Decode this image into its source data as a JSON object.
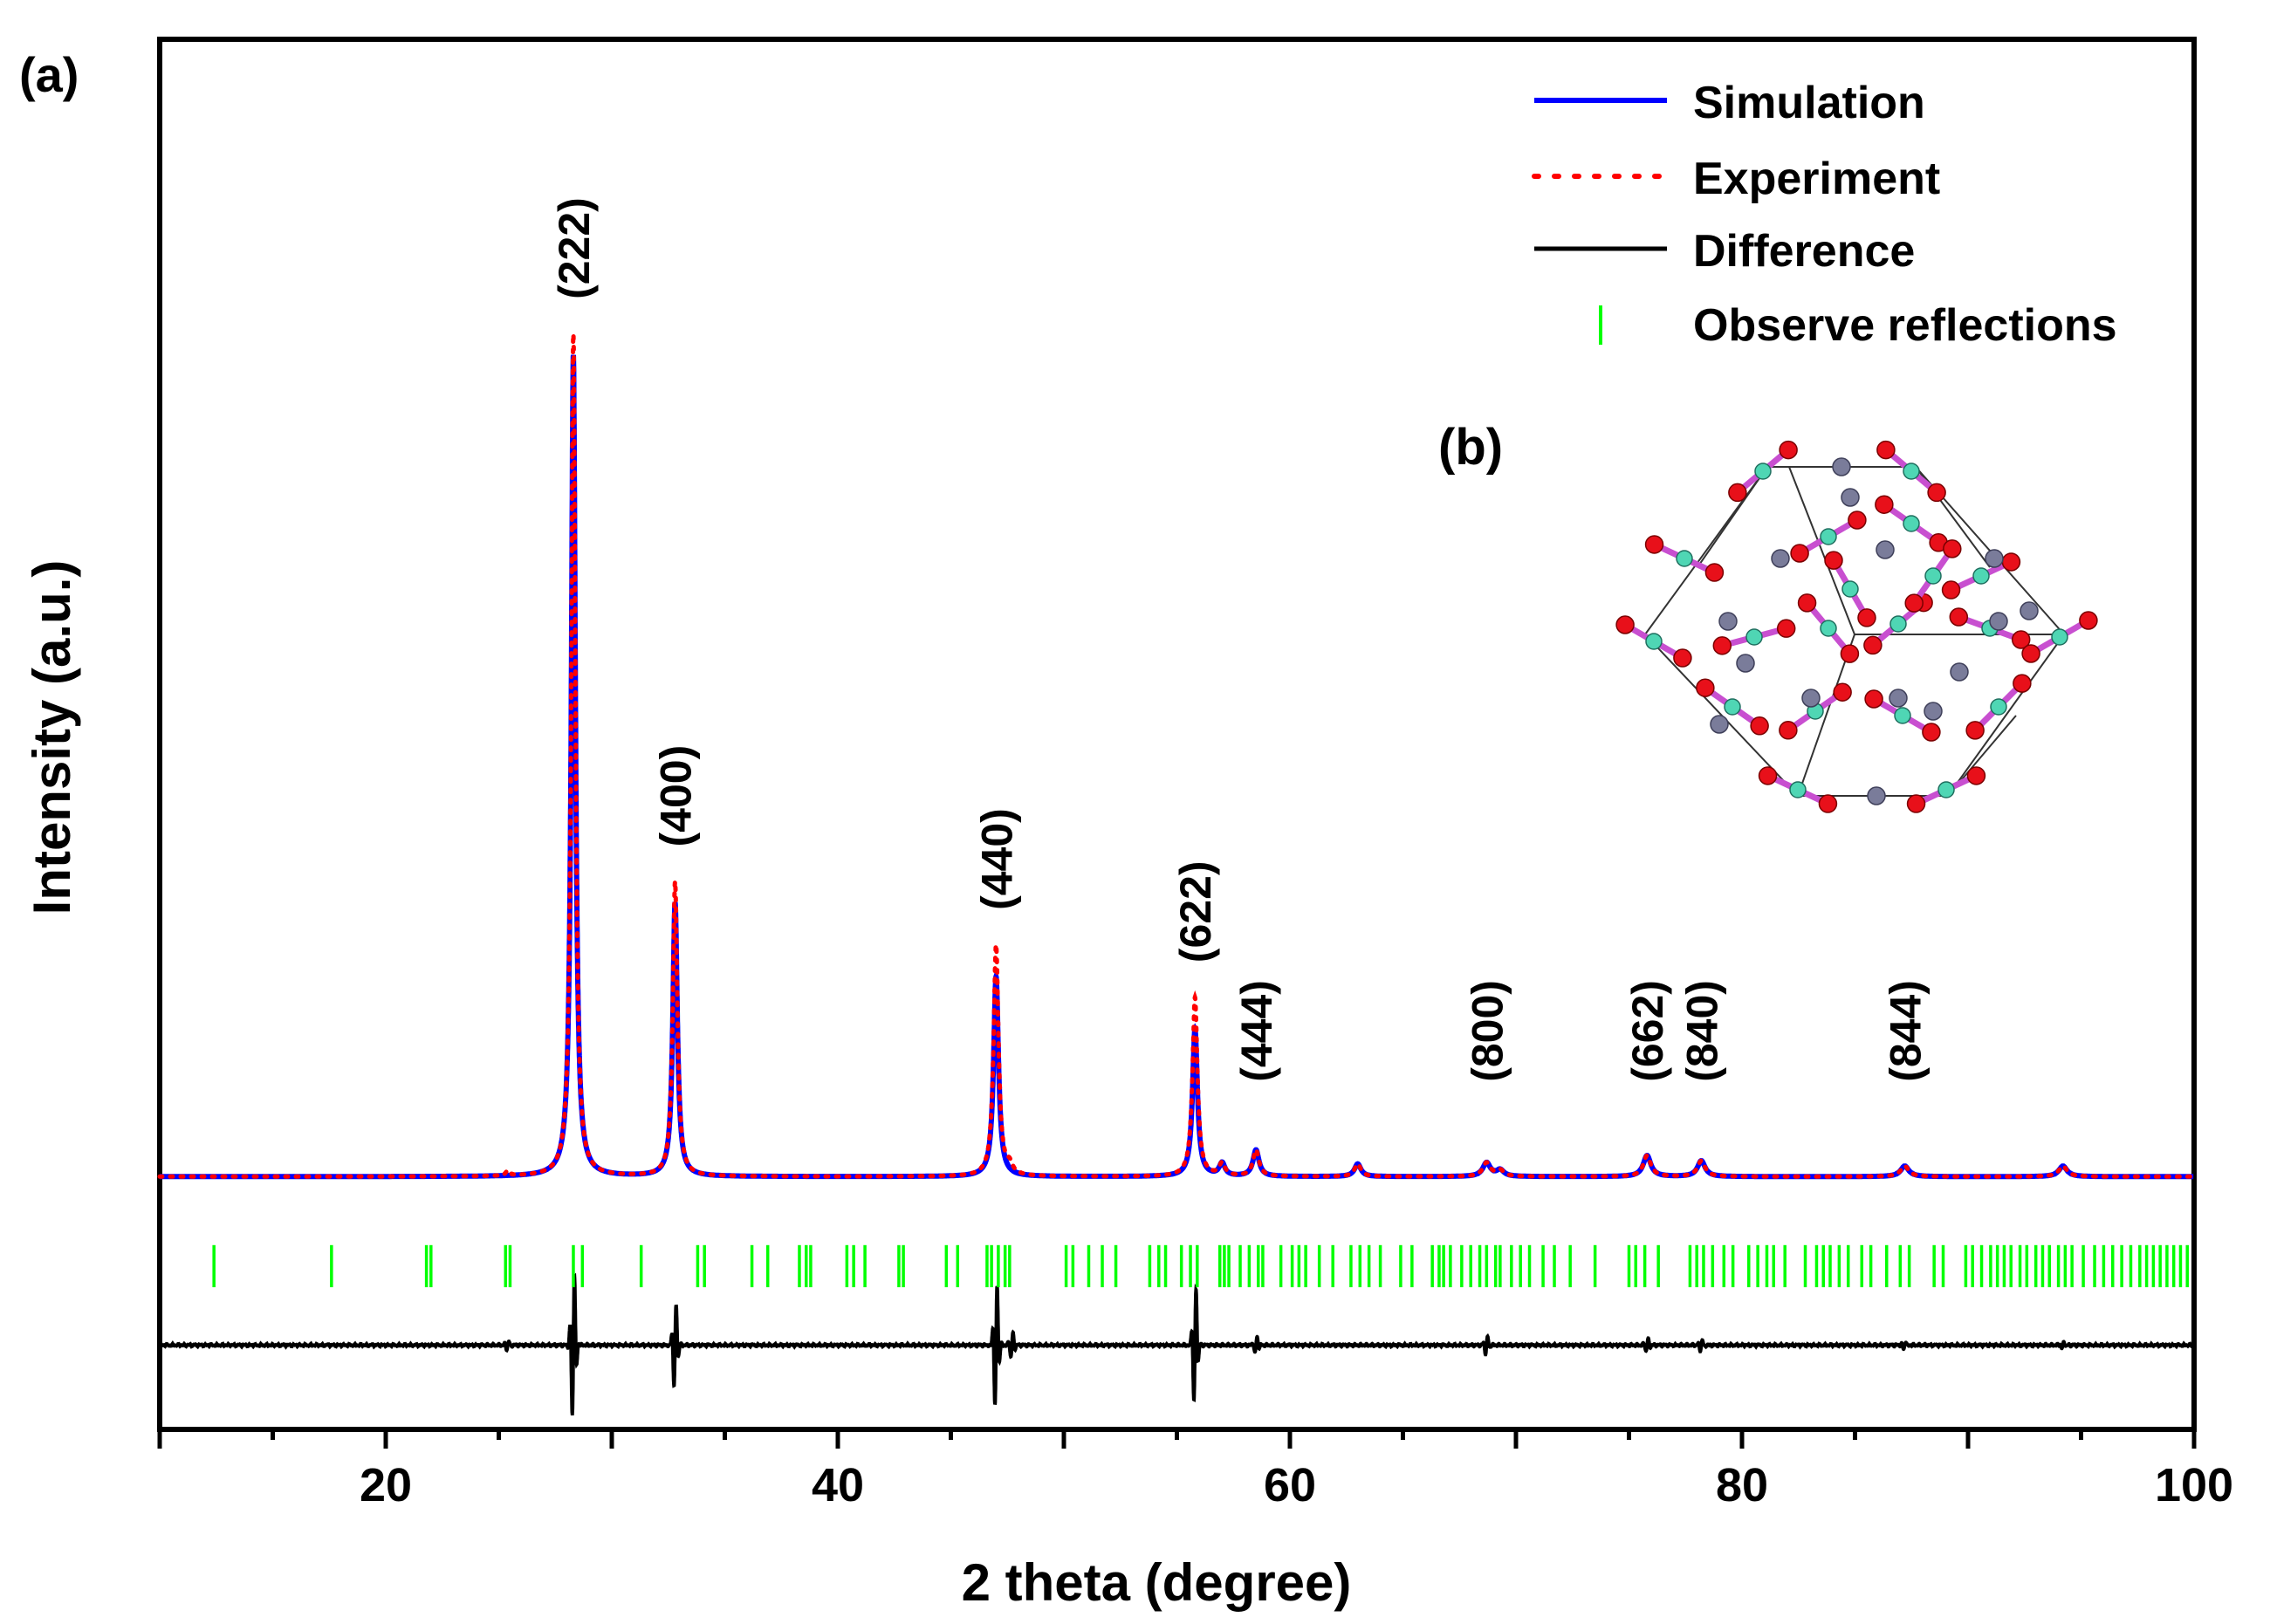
{
  "panel_label_a": "(a)",
  "panel_label_b": "(b)",
  "chart_data": {
    "type": "line",
    "title": "",
    "xlabel": "2 theta (degree)",
    "ylabel": "Intensity (a.u.)",
    "xlim": [
      10,
      100
    ],
    "ylim": [
      -0.22,
      1.1
    ],
    "x_ticks": [
      20,
      40,
      60,
      80,
      100
    ],
    "x_tick_labels": [
      "20",
      "40",
      "60",
      "80",
      "100"
    ],
    "grid": false,
    "legend_position": "top-right",
    "series": [
      {
        "name": "Simulation",
        "style": "solid",
        "color": "#0000ff"
      },
      {
        "name": "Experiment",
        "style": "dotted",
        "color": "#ff0000"
      },
      {
        "name": "Difference",
        "style": "solid",
        "color": "#000000"
      },
      {
        "name": "Observe reflections",
        "style": "ticks",
        "color": "#00ff00"
      }
    ],
    "baseline": 0.02,
    "difference_offset": -0.14,
    "peaks": [
      {
        "x": 28.3,
        "sim": 0.78,
        "exp": 0.8,
        "width": 0.11
      },
      {
        "x": 32.8,
        "sim": 0.26,
        "exp": 0.28,
        "width": 0.12
      },
      {
        "x": 47.0,
        "sim": 0.19,
        "exp": 0.22,
        "width": 0.13
      },
      {
        "x": 55.8,
        "sim": 0.14,
        "exp": 0.17,
        "width": 0.13
      },
      {
        "x": 57.0,
        "sim": 0.012,
        "exp": 0.012,
        "width": 0.15
      },
      {
        "x": 58.5,
        "sim": 0.025,
        "exp": 0.025,
        "width": 0.16
      },
      {
        "x": 63.0,
        "sim": 0.012,
        "exp": 0.012,
        "width": 0.17
      },
      {
        "x": 68.7,
        "sim": 0.013,
        "exp": 0.013,
        "width": 0.2
      },
      {
        "x": 69.3,
        "sim": 0.006,
        "exp": 0.006,
        "width": 0.2
      },
      {
        "x": 75.8,
        "sim": 0.02,
        "exp": 0.02,
        "width": 0.2
      },
      {
        "x": 78.2,
        "sim": 0.015,
        "exp": 0.015,
        "width": 0.2
      },
      {
        "x": 87.2,
        "sim": 0.01,
        "exp": 0.01,
        "width": 0.22
      },
      {
        "x": 94.2,
        "sim": 0.01,
        "exp": 0.01,
        "width": 0.22
      },
      {
        "x": 25.4,
        "sim": 0.0,
        "exp": 0.005,
        "width": 0.1
      },
      {
        "x": 47.6,
        "sim": 0.0,
        "exp": 0.008,
        "width": 0.15
      }
    ],
    "difference_spikes": [
      {
        "x": 28.3,
        "amp": 0.07
      },
      {
        "x": 32.8,
        "amp": 0.04
      },
      {
        "x": 47.0,
        "amp": 0.06
      },
      {
        "x": 47.7,
        "amp": 0.012
      },
      {
        "x": 55.8,
        "amp": 0.055
      },
      {
        "x": 58.5,
        "amp": 0.008
      },
      {
        "x": 68.7,
        "amp": 0.008
      },
      {
        "x": 75.8,
        "amp": 0.006
      },
      {
        "x": 78.2,
        "amp": 0.005
      },
      {
        "x": 87.2,
        "amp": 0.004
      },
      {
        "x": 94.2,
        "amp": 0.003
      },
      {
        "x": 25.4,
        "amp": 0.004
      }
    ],
    "reflections": [
      12.4,
      17.6,
      21.8,
      22.0,
      25.3,
      25.5,
      28.3,
      28.7,
      31.3,
      33.8,
      34.1,
      36.2,
      36.9,
      38.3,
      38.6,
      38.8,
      40.4,
      40.7,
      41.2,
      42.7,
      42.9,
      44.8,
      45.3,
      46.6,
      46.8,
      47.1,
      47.4,
      47.6,
      50.1,
      50.4,
      51.1,
      51.7,
      52.3,
      53.8,
      54.2,
      54.5,
      55.2,
      55.6,
      55.9,
      56.9,
      57.1,
      57.3,
      57.8,
      58.2,
      58.6,
      58.8,
      59.6,
      60.1,
      60.4,
      60.7,
      61.3,
      61.9,
      62.7,
      63.1,
      63.5,
      64.0,
      64.9,
      65.4,
      66.3,
      66.6,
      66.8,
      67.1,
      67.6,
      68.0,
      68.4,
      68.7,
      69.1,
      69.3,
      69.8,
      70.2,
      70.6,
      71.2,
      71.7,
      72.4,
      73.5,
      75.0,
      75.3,
      75.7,
      76.3,
      77.7,
      78.0,
      78.3,
      78.7,
      79.2,
      79.6,
      80.3,
      80.7,
      81.1,
      81.4,
      81.9,
      82.8,
      83.3,
      83.6,
      83.9,
      84.3,
      84.7,
      85.3,
      85.7,
      86.4,
      87.0,
      87.4,
      88.5,
      88.9,
      89.9,
      90.2,
      90.6,
      91.0,
      91.3,
      91.6,
      91.9,
      92.3,
      92.6,
      93.0,
      93.3,
      93.6,
      94.0,
      94.3,
      94.6,
      95.1,
      95.6,
      96.0,
      96.4,
      96.8,
      97.2,
      97.6,
      97.9,
      98.2,
      98.5,
      98.8,
      99.1,
      99.4,
      99.7
    ],
    "annotations": [
      {
        "text": "(222)",
        "x": 28.3
      },
      {
        "text": "(400)",
        "x": 32.8
      },
      {
        "text": "(440)",
        "x": 47.0
      },
      {
        "text": "(622)",
        "x": 55.8
      },
      {
        "text": "(444)",
        "x": 58.5
      },
      {
        "text": "(800)",
        "x": 68.7
      },
      {
        "text": "(662)",
        "x": 75.8
      },
      {
        "text": "(840)",
        "x": 78.2
      },
      {
        "text": "(844)",
        "x": 87.2
      }
    ]
  },
  "colors": {
    "simulation": "#0000ff",
    "experiment": "#ff0000",
    "difference": "#000000",
    "reflections": "#00ff00",
    "oxygen_atom": "#e8101a",
    "cation_atom": "#4fd6b4",
    "anion_atom": "#7a7c9a",
    "bond_pink": "#c84fd0"
  }
}
